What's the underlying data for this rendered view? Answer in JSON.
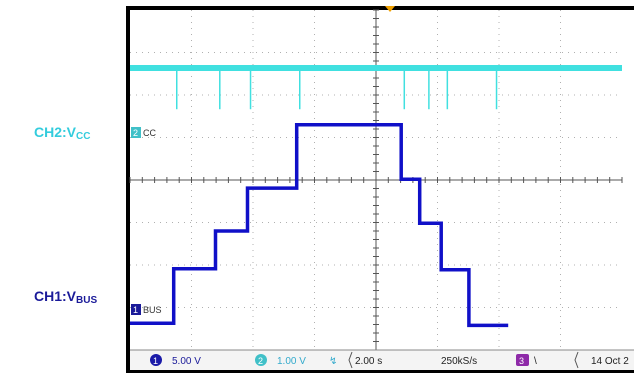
{
  "labels": {
    "ch2": {
      "main": "CH2:V",
      "sub": "CC"
    },
    "ch1": {
      "main": "CH1:V",
      "sub": "BUS"
    }
  },
  "markers": {
    "ch2_num": "2",
    "ch2_tag": "CC",
    "ch1_num": "1",
    "ch1_tag": "BUS"
  },
  "status_bar": {
    "ch1_num": "1",
    "ch1_scale": "5.00 V",
    "ch2_num": "2",
    "ch2_scale": "1.00 V",
    "bw_symbol": "↯",
    "timebase": "2.00 s",
    "sample_rate": "250kS/s",
    "trig_num": "3",
    "trig_slope": "\\",
    "date": "14 Oct 2"
  },
  "colors": {
    "ch1": "#1010c8",
    "ch2": "#40e0e0",
    "grid": "#b0b0b0",
    "frame": "#000000",
    "trigger": "#f0a000"
  },
  "chart_data": {
    "type": "line",
    "series": [
      {
        "channel": 2,
        "baseline": 0.0,
        "pulses_x": [
          0.76,
          1.46,
          1.96,
          2.76,
          4.46,
          4.86,
          5.16,
          5.96
        ],
        "pulse_depth": -0.97
      },
      {
        "channel": 1,
        "points": [
          [
            0.0,
            -3.37
          ],
          [
            0.71,
            -3.37
          ],
          [
            0.71,
            -2.09
          ],
          [
            1.39,
            -2.09
          ],
          [
            1.39,
            -1.2
          ],
          [
            1.91,
            -1.2
          ],
          [
            1.91,
            -0.19
          ],
          [
            2.71,
            -0.19
          ],
          [
            2.71,
            1.3
          ],
          [
            4.41,
            1.3
          ],
          [
            4.41,
            0.02
          ],
          [
            4.71,
            0.02
          ],
          [
            4.71,
            -1.02
          ],
          [
            5.06,
            -1.02
          ],
          [
            5.06,
            -2.11
          ],
          [
            5.51,
            -2.11
          ],
          [
            5.51,
            -3.42
          ],
          [
            6.15,
            -3.42
          ]
        ]
      }
    ]
  }
}
